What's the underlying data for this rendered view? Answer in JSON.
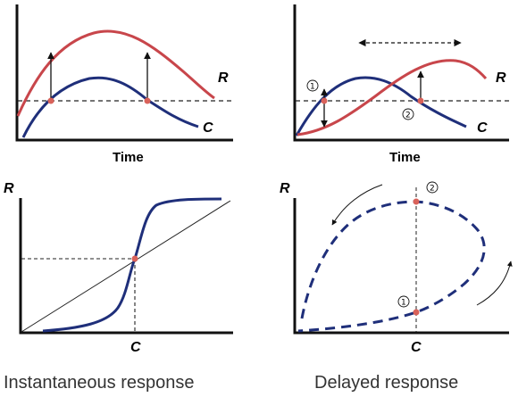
{
  "panels": {
    "top_left": {
      "xlabel": "Time",
      "curve_r_label": "R",
      "curve_c_label": "C"
    },
    "top_right": {
      "xlabel": "Time",
      "curve_r_label": "R",
      "curve_c_label": "C",
      "marker_1": "①",
      "marker_2": "②"
    },
    "bottom_left": {
      "ylabel": "R",
      "xlabel": "C"
    },
    "bottom_right": {
      "ylabel": "R",
      "xlabel": "C",
      "marker_1": "①",
      "marker_2": "②"
    }
  },
  "captions": {
    "left": "Instantaneous response",
    "right": "Delayed response"
  },
  "colors": {
    "r_curve": "#c8464b",
    "c_curve": "#1f2f7a",
    "axis": "#111111",
    "point": "#d9625a",
    "guide": "#222222"
  }
}
